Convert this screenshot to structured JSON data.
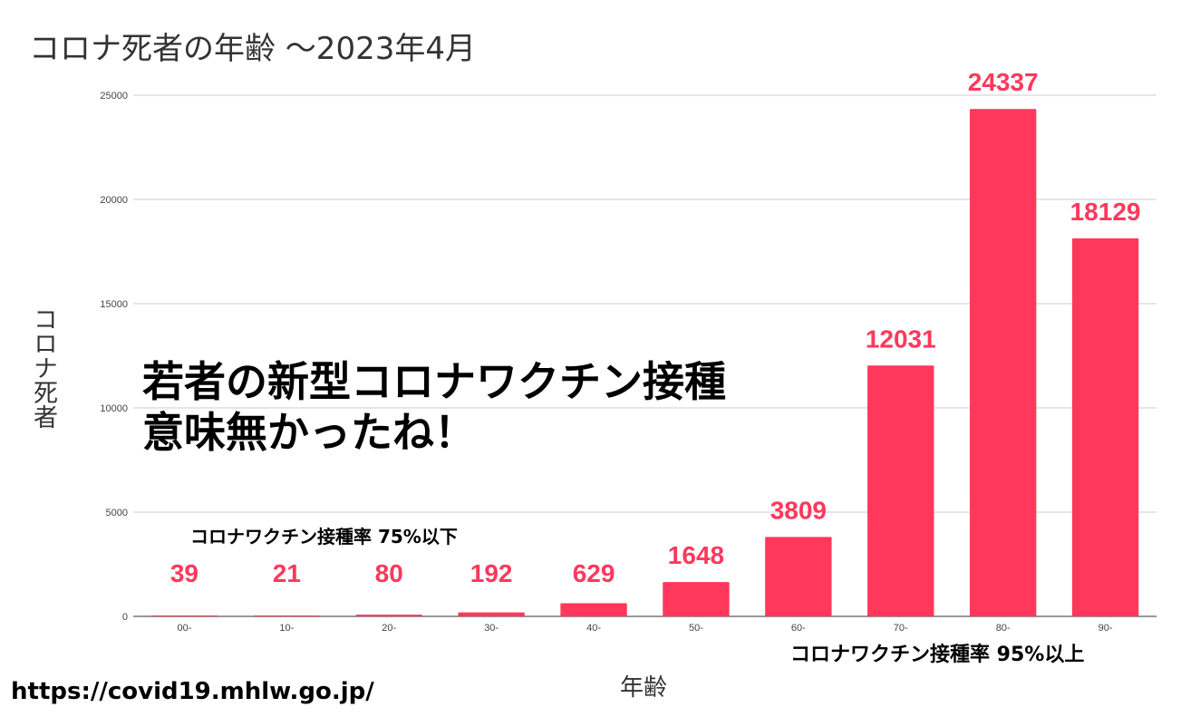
{
  "colors": {
    "bar": "#ff385c",
    "label": "#ff385c",
    "grid": "#cccccc",
    "axis": "#333333"
  },
  "chart_data": {
    "type": "bar",
    "title": "コロナ死者の年齢 ～2023年4月",
    "xlabel": "年齢",
    "ylabel": "コロナ死者",
    "categories": [
      "00-",
      "10-",
      "20-",
      "30-",
      "40-",
      "50-",
      "60-",
      "70-",
      "80-",
      "90-"
    ],
    "values": [
      39,
      21,
      80,
      192,
      629,
      1648,
      3809,
      12031,
      24337,
      18129
    ],
    "ylim": [
      0,
      25000
    ],
    "yticks": [
      "0",
      "5000",
      "10000",
      "15000",
      "20000",
      "25000"
    ],
    "grid": true
  },
  "annotations": {
    "headline_line1": "若者の新型コロナワクチン接種",
    "headline_line2": "意味無かったね！",
    "note_low": "コロナワクチン接種率 75%以下",
    "note_high": "コロナワクチン接種率 95%以上",
    "source": "https://covid19.mhlw.go.jp/"
  }
}
